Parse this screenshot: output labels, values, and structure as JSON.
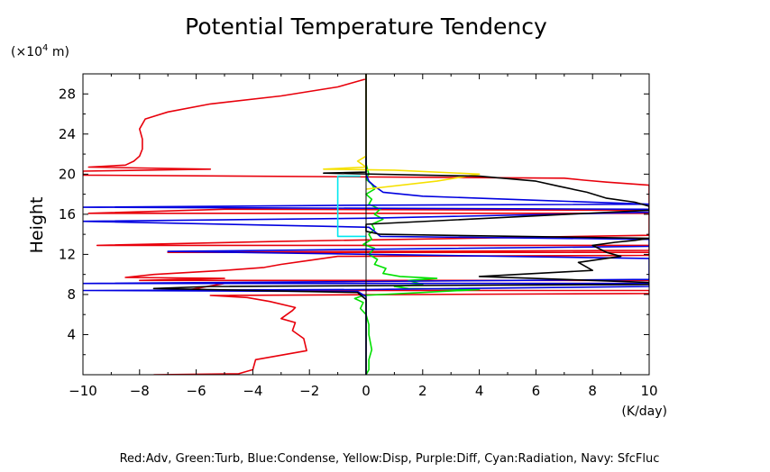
{
  "chart_data": {
    "type": "line",
    "title": "Potential Temperature Tendency",
    "xlabel": "",
    "x_unit": "(K/day)",
    "ylabel": "Height",
    "y_unit_prefix": "(×10",
    "y_unit_exp": "4",
    "y_unit_suffix": " m)",
    "xlim": [
      -10,
      10
    ],
    "ylim": [
      0,
      30
    ],
    "x_ticks": [
      -10,
      -8,
      -6,
      -4,
      -2,
      0,
      2,
      4,
      6,
      8,
      10
    ],
    "x_tick_labels": [
      "−10",
      "−8",
      "−6",
      "−4",
      "−2",
      "0",
      "2",
      "4",
      "6",
      "8",
      "10"
    ],
    "y_ticks": [
      4,
      8,
      12,
      16,
      20,
      24,
      28
    ],
    "y_tick_labels": [
      "4",
      "8",
      "12",
      "16",
      "20",
      "24",
      "28"
    ],
    "legend_text": "Red:Adv, Green:Turb, Blue:Condense, Yellow:Disp, Purple:Diff, Cyan:Radiation, Navy: SfcFluc",
    "colors": {
      "red": "#e8000b",
      "green": "#00e000",
      "blue": "#0000e0",
      "yellow": "#f5e000",
      "cyan": "#00e8f0",
      "black": "#000000",
      "navy": "#000080"
    },
    "series": [
      {
        "name": "Red",
        "color": "#e8000b",
        "points": [
          [
            -7.5,
            0
          ],
          [
            -4.5,
            0.1
          ],
          [
            -4,
            0.5
          ],
          [
            -3.9,
            1.5
          ],
          [
            -2.1,
            2.4
          ],
          [
            -2.2,
            3.6
          ],
          [
            -2.6,
            4.4
          ],
          [
            -2.5,
            5.2
          ],
          [
            -3,
            5.6
          ],
          [
            -2.6,
            6.4
          ],
          [
            -2.5,
            6.7
          ],
          [
            -3.4,
            7.3
          ],
          [
            -4.2,
            7.7
          ],
          [
            -5.5,
            7.9
          ],
          [
            10,
            8.1
          ],
          [
            10,
            8.4
          ],
          [
            -6.4,
            8.4
          ],
          [
            -5,
            9.1
          ],
          [
            10,
            9.1
          ],
          [
            10,
            9.4
          ],
          [
            -8,
            9.4
          ],
          [
            -5,
            9.6
          ],
          [
            -8.5,
            9.7
          ],
          [
            -7.5,
            10
          ],
          [
            -5,
            10.4
          ],
          [
            -3.6,
            10.7
          ],
          [
            -3,
            11
          ],
          [
            -2,
            11.4
          ],
          [
            -1,
            11.8
          ],
          [
            10,
            11.9
          ],
          [
            10,
            12.2
          ],
          [
            -7,
            12.2
          ],
          [
            10,
            12.4
          ],
          [
            10,
            12.9
          ],
          [
            -9.5,
            12.9
          ],
          [
            -3,
            13.3
          ],
          [
            10,
            13.9
          ],
          [
            10,
            16.1
          ],
          [
            -9.8,
            16.1
          ],
          [
            -5,
            16.5
          ],
          [
            10,
            16.4
          ],
          [
            10,
            18.9
          ],
          [
            8.5,
            19.2
          ],
          [
            7.7,
            19.4
          ],
          [
            7,
            19.6
          ],
          [
            -10,
            19.9
          ],
          [
            -10,
            20.3
          ],
          [
            -5.5,
            20.5
          ],
          [
            -9.8,
            20.7
          ],
          [
            -8.5,
            20.9
          ],
          [
            -8.2,
            21.3
          ],
          [
            -8,
            21.8
          ],
          [
            -7.9,
            22.5
          ],
          [
            -7.9,
            23.5
          ],
          [
            -8,
            24.5
          ],
          [
            -7.8,
            25.5
          ],
          [
            -7,
            26.2
          ],
          [
            -5.5,
            27
          ],
          [
            -3,
            27.8
          ],
          [
            -1,
            28.7
          ],
          [
            0,
            29.5
          ],
          [
            0,
            30
          ]
        ]
      },
      {
        "name": "Green",
        "color": "#00e000",
        "points": [
          [
            0,
            0
          ],
          [
            0.1,
            0.5
          ],
          [
            0.1,
            1.5
          ],
          [
            0.2,
            2.5
          ],
          [
            0.1,
            4
          ],
          [
            0.1,
            5
          ],
          [
            0,
            6
          ],
          [
            -0.2,
            6.6
          ],
          [
            -0.1,
            7.2
          ],
          [
            -0.4,
            7.6
          ],
          [
            -0.1,
            7.9
          ],
          [
            2,
            8.2
          ],
          [
            4,
            8.5
          ],
          [
            1.5,
            8.6
          ],
          [
            1,
            8.8
          ],
          [
            2,
            9
          ],
          [
            1.5,
            9.4
          ],
          [
            2.5,
            9.6
          ],
          [
            1.2,
            9.8
          ],
          [
            0.6,
            10.1
          ],
          [
            0.7,
            10.6
          ],
          [
            0.3,
            11
          ],
          [
            0.4,
            11.5
          ],
          [
            0.1,
            12
          ],
          [
            0.3,
            12.6
          ],
          [
            -0.1,
            13
          ],
          [
            0.2,
            13.5
          ],
          [
            0.1,
            14
          ],
          [
            0.3,
            14.5
          ],
          [
            0.2,
            15
          ],
          [
            0.6,
            15.5
          ],
          [
            0.3,
            16
          ],
          [
            0.5,
            16.5
          ],
          [
            0.1,
            17
          ],
          [
            0.2,
            17.5
          ],
          [
            0,
            18
          ],
          [
            0.3,
            18.5
          ],
          [
            0.2,
            19
          ],
          [
            0,
            19.5
          ],
          [
            0.1,
            20
          ],
          [
            0,
            21
          ],
          [
            0,
            30
          ]
        ]
      },
      {
        "name": "Blue",
        "color": "#0000e0",
        "points": [
          [
            0,
            0
          ],
          [
            0,
            7.8
          ],
          [
            -0.3,
            8.3
          ],
          [
            -10,
            8.4
          ],
          [
            0,
            8.5
          ],
          [
            10,
            8.8
          ],
          [
            10,
            9.1
          ],
          [
            -10,
            9.1
          ],
          [
            0,
            9.3
          ],
          [
            10,
            9.5
          ],
          [
            10,
            11.6
          ],
          [
            -7,
            12.3
          ],
          [
            0,
            12.5
          ],
          [
            10,
            12.8
          ],
          [
            10,
            13.5
          ],
          [
            0.5,
            13.8
          ],
          [
            0.3,
            14.3
          ],
          [
            0.1,
            14.7
          ],
          [
            -10,
            15.3
          ],
          [
            0,
            15.6
          ],
          [
            10,
            16.2
          ],
          [
            10,
            16.5
          ],
          [
            -10,
            16.7
          ],
          [
            0,
            16.9
          ],
          [
            10,
            17
          ],
          [
            10,
            17
          ],
          [
            6,
            17.4
          ],
          [
            2,
            17.8
          ],
          [
            0.6,
            18.2
          ],
          [
            0.3,
            18.8
          ],
          [
            0.1,
            19.3
          ],
          [
            0,
            20
          ],
          [
            0,
            30
          ]
        ]
      },
      {
        "name": "Yellow",
        "color": "#f5e000",
        "points": [
          [
            0,
            18.5
          ],
          [
            2.5,
            19.3
          ],
          [
            4,
            20
          ],
          [
            1,
            20.4
          ],
          [
            -1.5,
            20.5
          ],
          [
            0,
            20.7
          ],
          [
            -0.3,
            21.3
          ],
          [
            0,
            21.8
          ],
          [
            0,
            30
          ]
        ]
      },
      {
        "name": "Cyan",
        "color": "#00e8f0",
        "points": [
          [
            0,
            13.8
          ],
          [
            -1,
            13.8
          ],
          [
            -1,
            19.8
          ],
          [
            -0.2,
            19.8
          ]
        ]
      },
      {
        "name": "Black",
        "color": "#000000",
        "points": [
          [
            0,
            0
          ],
          [
            0,
            7.5
          ],
          [
            -0.3,
            8.2
          ],
          [
            -7.5,
            8.6
          ],
          [
            -5.5,
            8.8
          ],
          [
            10,
            9.0
          ],
          [
            10,
            9.2
          ],
          [
            4,
            9.8
          ],
          [
            8,
            10.4
          ],
          [
            7.5,
            11.2
          ],
          [
            9,
            11.8
          ],
          [
            8.5,
            12.2
          ],
          [
            8,
            12.9
          ],
          [
            8.8,
            13.2
          ],
          [
            9.5,
            13.4
          ],
          [
            10,
            13.6
          ],
          [
            0.5,
            14.0
          ],
          [
            0,
            14.3
          ],
          [
            0,
            15
          ],
          [
            10,
            16.4
          ],
          [
            10,
            16.8
          ],
          [
            9.5,
            17.2
          ],
          [
            8.5,
            17.6
          ],
          [
            7.8,
            18.2
          ],
          [
            6.8,
            18.8
          ],
          [
            6,
            19.3
          ],
          [
            4,
            19.8
          ],
          [
            -1.5,
            20.1
          ],
          [
            0,
            20.2
          ],
          [
            0,
            30
          ]
        ]
      }
    ]
  }
}
